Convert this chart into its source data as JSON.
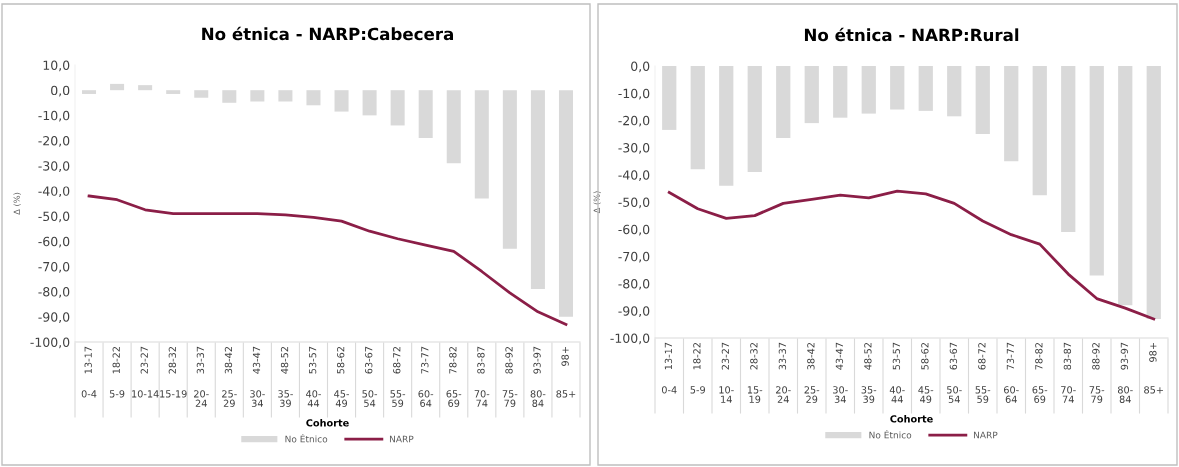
{
  "chart_data": [
    {
      "type": "bar",
      "title": "No étnica - NARP:Cabecera",
      "xlabel": "Cohorte",
      "ylabel": "Δ (%)",
      "categories": [
        "13-17\n0-4",
        "18-22\n5-9",
        "23-27\n10-14",
        "28-32\n15-19",
        "33-37\n20-\n24",
        "38-42\n25-\n29",
        "43-47\n30-\n34",
        "48-52\n35-\n39",
        "53-57\n40-\n44",
        "58-62\n45-\n49",
        "63-67\n50-\n54",
        "68-72\n55-\n59",
        "73-77\n60-\n64",
        "78-82\n65-\n69",
        "83-87\n70-\n74",
        "88-92\n75-\n79",
        "93-97\n80-\n84",
        "98+\n85+"
      ],
      "series": [
        {
          "name": "No Étnico",
          "type": "bar",
          "color": "#d9d9d9",
          "values": [
            -1.5,
            2.5,
            2.0,
            -1.5,
            -3,
            -5,
            -4.5,
            -4.5,
            -6,
            -8.5,
            -10,
            -14,
            -19,
            -29,
            -43,
            -63,
            -79,
            -90
          ]
        },
        {
          "name": "NARP",
          "type": "line",
          "color": "#8b1e47",
          "values": [
            -42,
            -43.5,
            -47.5,
            -49,
            -49,
            -49,
            -49,
            -49.5,
            -50.5,
            -52,
            -56,
            -59,
            -61.5,
            -64,
            -72,
            -80.5,
            -88,
            -93
          ]
        }
      ],
      "ylim": [
        -100,
        10
      ],
      "yticks": [
        {
          "value": 10,
          "label": "10,0"
        },
        {
          "value": 0,
          "label": "0,0"
        },
        {
          "value": -10,
          "label": "-10,0"
        },
        {
          "value": -20,
          "label": "-20,0"
        },
        {
          "value": -30,
          "label": "-30,0"
        },
        {
          "value": -40,
          "label": "-40,0"
        },
        {
          "value": -50,
          "label": "-50,0"
        },
        {
          "value": -60,
          "label": "-60,0"
        },
        {
          "value": -70,
          "label": "-70,0"
        },
        {
          "value": -80,
          "label": "-80,0"
        },
        {
          "value": -90,
          "label": "-90,0"
        },
        {
          "value": -100,
          "label": "-100,0"
        }
      ],
      "legend": "bottom",
      "grid": false
    },
    {
      "type": "bar",
      "title": "No étnica - NARP:Rural",
      "xlabel": "Cohorte",
      "ylabel": "Δ (%)",
      "categories": [
        "13-17\n0-4",
        "18-22\n5-9",
        "23-27\n10-\n14",
        "28-32\n15-\n19",
        "33-37\n20-\n24",
        "38-42\n25-\n29",
        "43-47\n30-\n34",
        "48-52\n35-\n39",
        "53-57\n40-\n44",
        "58-62\n45-\n49",
        "63-67\n50-\n54",
        "68-72\n55-\n59",
        "73-77\n60-\n64",
        "78-82\n65-\n69",
        "83-87\n70-\n74",
        "88-92\n75-\n79",
        "93-97\n80-\n84",
        "98+\n85+"
      ],
      "series": [
        {
          "name": "No Étnico",
          "type": "bar",
          "color": "#d9d9d9",
          "values": [
            -23.5,
            -38,
            -44,
            -39,
            -26.5,
            -21,
            -19,
            -17.5,
            -16,
            -16.5,
            -18.5,
            -25,
            -35,
            -47.5,
            -61,
            -77,
            -88,
            -93
          ]
        },
        {
          "name": "NARP",
          "type": "line",
          "color": "#8b1e47",
          "values": [
            -46.5,
            -52.5,
            -56,
            -55,
            -50.5,
            -49,
            -47.5,
            -48.5,
            -46,
            -47,
            -50.5,
            -57,
            -62,
            -65.5,
            -76.5,
            -85.5,
            -89,
            -93
          ]
        }
      ],
      "ylim": [
        -100,
        0
      ],
      "yticks": [
        {
          "value": 0,
          "label": "0,0"
        },
        {
          "value": -10,
          "label": "-10,0"
        },
        {
          "value": -20,
          "label": "-20,0"
        },
        {
          "value": -30,
          "label": "-30,0"
        },
        {
          "value": -40,
          "label": "-40,0"
        },
        {
          "value": -50,
          "label": "-50,0"
        },
        {
          "value": -60,
          "label": "-60,0"
        },
        {
          "value": -70,
          "label": "-70,0"
        },
        {
          "value": -80,
          "label": "-80,0"
        },
        {
          "value": -90,
          "label": "-90,0"
        },
        {
          "value": -100,
          "label": "-100,0"
        }
      ],
      "legend": "bottom",
      "grid": false
    }
  ]
}
